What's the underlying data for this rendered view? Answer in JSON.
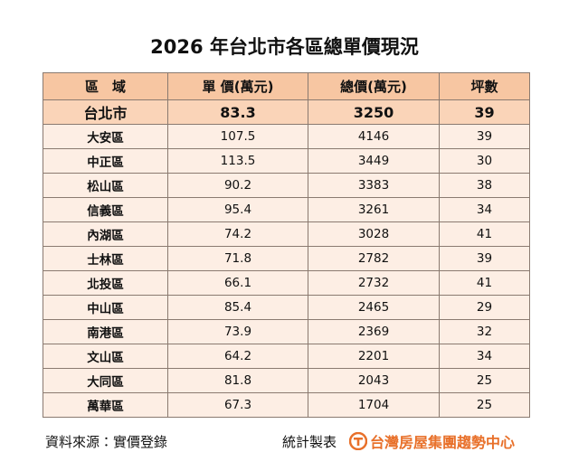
{
  "header": {
    "title": "2026 年台北市各區總單價現況"
  },
  "table": {
    "columns": [
      "區　域",
      "單 價(萬元)",
      "總價(萬元)",
      "坪數"
    ],
    "summary": [
      "台北市",
      "83.3",
      "3250",
      "39"
    ],
    "rows": [
      [
        "大安區",
        "107.5",
        "4146",
        "39"
      ],
      [
        "中正區",
        "113.5",
        "3449",
        "30"
      ],
      [
        "松山區",
        "90.2",
        "3383",
        "38"
      ],
      [
        "信義區",
        "95.4",
        "3261",
        "34"
      ],
      [
        "內湖區",
        "74.2",
        "3028",
        "41"
      ],
      [
        "士林區",
        "71.8",
        "2782",
        "39"
      ],
      [
        "北投區",
        "66.1",
        "2732",
        "41"
      ],
      [
        "中山區",
        "85.4",
        "2465",
        "29"
      ],
      [
        "南港區",
        "73.9",
        "2369",
        "32"
      ],
      [
        "文山區",
        "64.2",
        "2201",
        "34"
      ],
      [
        "大同區",
        "81.8",
        "2043",
        "25"
      ],
      [
        "萬華區",
        "67.3",
        "1704",
        "25"
      ]
    ]
  },
  "footer": {
    "source": "資料來源：實價登錄",
    "made_by": "統計製表",
    "brand": "台灣房屋集團趨勢中心"
  }
}
